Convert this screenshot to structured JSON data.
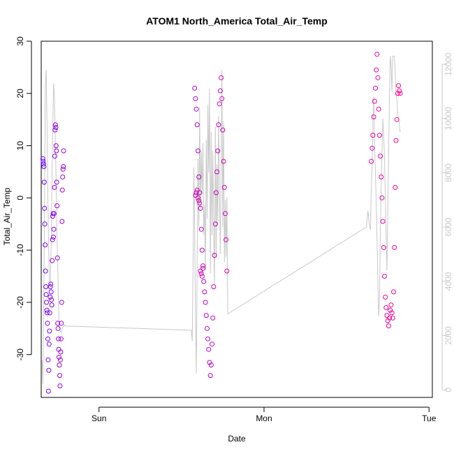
{
  "chart_data": {
    "type": "scatter",
    "title": "ATOM1 North_America Total_Air_Temp",
    "xlabel": "Date",
    "ylabel": "Total_Air_Temp",
    "xlim": [
      -0.35,
      2.02
    ],
    "ylim": [
      -38.2,
      30.0
    ],
    "y2lim": [
      -280,
      12850
    ],
    "x_ticks": [
      {
        "value": 0,
        "label": "Sun"
      },
      {
        "value": 1,
        "label": "Mon"
      },
      {
        "value": 2,
        "label": "Tue"
      }
    ],
    "y_ticks": [
      -30,
      -20,
      -10,
      0,
      10,
      20,
      30
    ],
    "y2_ticks": [
      0,
      2000,
      4000,
      6000,
      8000,
      10000,
      12000
    ],
    "grid": false,
    "legend": "none",
    "colors": {
      "series_start": "#6a00ff",
      "series_end": "#ff0090",
      "secondary_line": "#c8c8c8",
      "axis": "#000000",
      "secondary_axis": "#c8c8c8"
    },
    "series": [
      {
        "values": [
          [
            -0.34,
            7.5
          ],
          [
            -0.338,
            7.0
          ],
          [
            -0.336,
            6.5
          ],
          [
            -0.334,
            6.0
          ],
          [
            -0.332,
            3.0
          ],
          [
            -0.33,
            -2.0
          ],
          [
            -0.328,
            -5.0
          ],
          [
            -0.326,
            -9.0
          ],
          [
            -0.324,
            -14.0
          ],
          [
            -0.322,
            -17.0
          ],
          [
            -0.32,
            -18.5
          ],
          [
            -0.318,
            -20.0
          ],
          [
            -0.316,
            -21.5
          ],
          [
            -0.314,
            -22.0
          ],
          [
            -0.312,
            -24.0
          ],
          [
            -0.31,
            -27.0
          ],
          [
            -0.308,
            -31.0
          ],
          [
            -0.306,
            -37.0
          ],
          [
            -0.304,
            -33.0
          ],
          [
            -0.302,
            -28.0
          ],
          [
            -0.3,
            -25.5
          ],
          [
            -0.298,
            -22.0
          ],
          [
            -0.296,
            -19.0
          ],
          [
            -0.294,
            -17.0
          ],
          [
            -0.292,
            -16.5
          ],
          [
            -0.29,
            -18.0
          ],
          [
            -0.288,
            -19.5
          ],
          [
            -0.286,
            -20.5
          ],
          [
            -0.284,
            -12.0
          ],
          [
            -0.282,
            -8.0
          ],
          [
            -0.28,
            -3.5
          ],
          [
            -0.278,
            -3.0
          ],
          [
            -0.276,
            -7.5
          ],
          [
            -0.274,
            -6.0
          ],
          [
            -0.272,
            -3.0
          ],
          [
            -0.27,
            2.0
          ],
          [
            -0.268,
            8.0
          ],
          [
            -0.266,
            13.0
          ],
          [
            -0.264,
            14.0
          ],
          [
            -0.262,
            13.5
          ],
          [
            -0.26,
            10.0
          ],
          [
            -0.258,
            9.0
          ],
          [
            -0.256,
            3.0
          ],
          [
            -0.254,
            -1.5
          ],
          [
            -0.252,
            -11.5
          ],
          [
            -0.25,
            -24.0
          ],
          [
            -0.248,
            -25.0
          ],
          [
            -0.246,
            -27.0
          ],
          [
            -0.244,
            -29.0
          ],
          [
            -0.242,
            -30.5
          ],
          [
            -0.24,
            -32.0
          ],
          [
            -0.238,
            -34.0
          ],
          [
            -0.236,
            -36.0
          ],
          [
            -0.234,
            -31.0
          ],
          [
            -0.232,
            -29.5
          ],
          [
            -0.23,
            -27.0
          ],
          [
            -0.228,
            -24.0
          ],
          [
            -0.226,
            -20.0
          ],
          [
            -0.224,
            -4.5
          ],
          [
            -0.222,
            1.5
          ],
          [
            -0.22,
            4.0
          ],
          [
            -0.218,
            5.5
          ],
          [
            -0.216,
            6.0
          ],
          [
            -0.214,
            9.0
          ],
          [
            0.58,
            21.0
          ],
          [
            0.585,
            19.0
          ],
          [
            0.59,
            17.0
          ],
          [
            0.595,
            14.0
          ],
          [
            0.6,
            9.0
          ],
          [
            0.605,
            4.0
          ],
          [
            0.61,
            1.0
          ],
          [
            0.615,
            -2.0
          ],
          [
            0.62,
            -6.0
          ],
          [
            0.625,
            -10.0
          ],
          [
            0.63,
            -13.5
          ],
          [
            0.635,
            -16.0
          ],
          [
            0.64,
            -18.0
          ],
          [
            0.645,
            -20.0
          ],
          [
            0.65,
            -22.5
          ],
          [
            0.655,
            -25.0
          ],
          [
            0.66,
            -27.0
          ],
          [
            0.665,
            -29.0
          ],
          [
            0.67,
            -31.5
          ],
          [
            0.675,
            -34.0
          ],
          [
            0.68,
            -32.0
          ],
          [
            0.685,
            -28.0
          ],
          [
            0.69,
            -23.0
          ],
          [
            0.695,
            -17.0
          ],
          [
            0.7,
            -11.0
          ],
          [
            0.705,
            -5.0
          ],
          [
            0.71,
            1.0
          ],
          [
            0.715,
            5.0
          ],
          [
            0.72,
            9.0
          ],
          [
            0.725,
            14.0
          ],
          [
            0.73,
            18.0
          ],
          [
            0.735,
            20.5
          ],
          [
            0.74,
            23.0
          ],
          [
            0.745,
            19.0
          ],
          [
            0.75,
            13.0
          ],
          [
            0.755,
            7.0
          ],
          [
            0.76,
            2.0
          ],
          [
            0.765,
            -3.0
          ],
          [
            0.77,
            -8.0
          ],
          [
            0.775,
            -14.0
          ],
          [
            0.585,
            0.5
          ],
          [
            0.59,
            1.0
          ],
          [
            0.595,
            1.5
          ],
          [
            0.6,
            0.0
          ],
          [
            0.605,
            -0.5
          ],
          [
            0.61,
            -1.0
          ],
          [
            0.615,
            -14.0
          ],
          [
            0.62,
            -14.5
          ],
          [
            0.625,
            -15.0
          ],
          [
            0.63,
            -13.0
          ],
          [
            1.65,
            7.0
          ],
          [
            1.655,
            9.5
          ],
          [
            1.66,
            12.0
          ],
          [
            1.665,
            15.5
          ],
          [
            1.67,
            18.5
          ],
          [
            1.675,
            21.0
          ],
          [
            1.68,
            24.5
          ],
          [
            1.685,
            27.5
          ],
          [
            1.69,
            23.0
          ],
          [
            1.695,
            17.0
          ],
          [
            1.7,
            12.0
          ],
          [
            1.705,
            8.0
          ],
          [
            1.71,
            4.0
          ],
          [
            1.715,
            0.0
          ],
          [
            1.72,
            -4.5
          ],
          [
            1.725,
            -9.5
          ],
          [
            1.73,
            -15.0
          ],
          [
            1.735,
            -19.0
          ],
          [
            1.74,
            -21.0
          ],
          [
            1.745,
            -22.5
          ],
          [
            1.75,
            -23.5
          ],
          [
            1.755,
            -24.5
          ],
          [
            1.76,
            -23.0
          ],
          [
            1.765,
            -21.5
          ],
          [
            1.77,
            -20.5
          ],
          [
            1.775,
            -22.0
          ],
          [
            1.78,
            -23.0
          ],
          [
            1.785,
            -18.0
          ],
          [
            1.79,
            -9.5
          ],
          [
            1.795,
            2.0
          ],
          [
            1.8,
            11.0
          ],
          [
            1.805,
            15.0
          ],
          [
            1.81,
            20.0
          ],
          [
            1.815,
            21.5
          ],
          [
            1.82,
            20.5
          ],
          [
            1.825,
            20.0
          ]
        ]
      }
    ],
    "secondary_series": {
      "axis": "right",
      "x": [
        -0.345,
        -0.34,
        -0.335,
        -0.33,
        -0.325,
        -0.32,
        -0.315,
        -0.31,
        -0.305,
        -0.3,
        -0.295,
        -0.29,
        -0.285,
        -0.28,
        -0.275,
        -0.27,
        -0.265,
        -0.26,
        -0.255,
        -0.25,
        -0.245,
        -0.24,
        -0.235,
        -0.23,
        -0.225,
        -0.22,
        -0.215,
        -0.21,
        -0.205,
        0.56,
        0.565,
        0.57,
        0.575,
        0.58,
        0.585,
        0.59,
        0.595,
        0.6,
        0.605,
        0.61,
        0.615,
        0.62,
        0.625,
        0.63,
        0.635,
        0.64,
        0.645,
        0.65,
        0.655,
        0.66,
        0.665,
        0.67,
        0.675,
        0.68,
        0.685,
        0.69,
        0.695,
        0.7,
        0.705,
        0.71,
        0.715,
        0.72,
        0.725,
        0.73,
        0.735,
        0.74,
        0.745,
        0.75,
        0.755,
        0.76,
        0.765,
        0.77,
        0.775,
        0.78,
        1.62,
        1.63,
        1.64,
        1.645,
        1.65,
        1.655,
        1.66,
        1.665,
        1.67,
        1.675,
        1.68,
        1.685,
        1.69,
        1.695,
        1.7,
        1.705,
        1.71,
        1.715,
        1.72,
        1.725,
        1.73,
        1.735,
        1.74,
        1.745,
        1.75,
        1.755,
        1.76,
        1.765,
        1.77,
        1.775,
        1.78,
        1.79,
        1.8,
        1.805,
        1.81,
        1.815,
        1.82,
        1.825
      ],
      "y": [
        1100,
        200,
        3000,
        6500,
        11200,
        11800,
        9800,
        7200,
        5200,
        4000,
        3800,
        5200,
        7800,
        9600,
        11300,
        10800,
        9200,
        7800,
        5800,
        4700,
        2900,
        2300,
        2200,
        2100,
        2200,
        2300,
        2350,
        2400,
        2350,
        2200,
        1800,
        4500,
        8200,
        5900,
        2800,
        600,
        4800,
        8500,
        6000,
        10400,
        6600,
        8800,
        7200,
        9100,
        5700,
        6800,
        4400,
        9200,
        6300,
        10500,
        8000,
        11100,
        4300,
        9500,
        5700,
        8800,
        6000,
        3900,
        9700,
        4900,
        8300,
        6100,
        10100,
        7300,
        5000,
        8000,
        11800,
        6000,
        9900,
        4700,
        7000,
        4900,
        7100,
        2800,
        6000,
        6600,
        6000,
        5900,
        7500,
        8200,
        9800,
        10800,
        9100,
        8000,
        6800,
        5600,
        4000,
        2700,
        3500,
        5900,
        7600,
        8800,
        10000,
        9300,
        8600,
        7100,
        5700,
        4400,
        6500,
        8800,
        10800,
        12300,
        12000,
        11000,
        12300,
        12300,
        11000,
        10700,
        10200,
        10000,
        9800,
        9500
      ]
    }
  }
}
